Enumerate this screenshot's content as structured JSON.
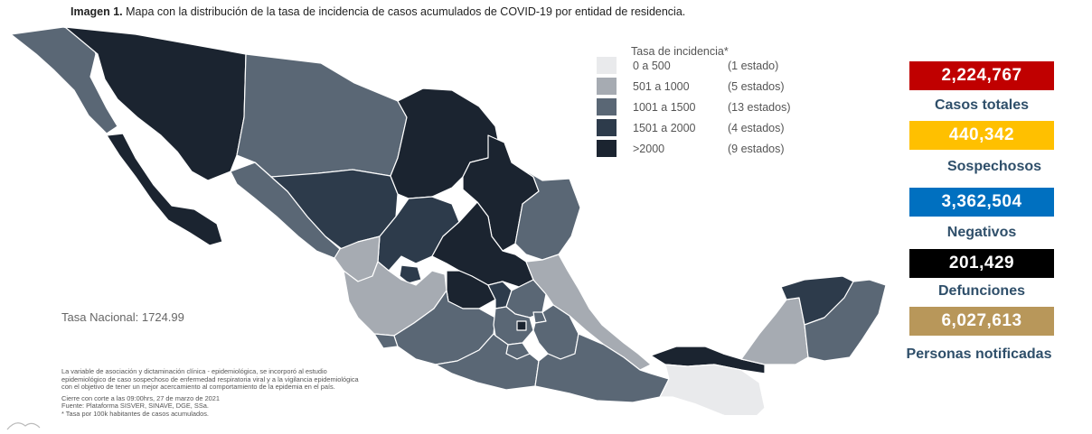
{
  "header": {
    "title_bold": "Imagen 1.",
    "title_rest": " Mapa con la distribución de la tasa de incidencia de casos acumulados de COVID-19 por entidad de residencia."
  },
  "legend": {
    "title": "Tasa de incidencia*",
    "items": [
      {
        "range": "0 a   500",
        "count": "(1 estado)",
        "color": "#e9eaec"
      },
      {
        "range": "501 a   1000",
        "count": "(5 estados)",
        "color": "#a6abb2"
      },
      {
        "range": "1001 a   1500",
        "count": "(13 estados)",
        "color": "#5a6775"
      },
      {
        "range": "1501 a   2000",
        "count": "(4 estados)",
        "color": "#2d3b4b"
      },
      {
        "range": ">2000",
        "count": "(9 estados)",
        "color": "#1b2430"
      }
    ]
  },
  "stats": [
    {
      "value": "2,224,767",
      "label": "Casos totales",
      "color": "#c00000"
    },
    {
      "value": "440,342",
      "label": "Sospechosos",
      "color": "#ffc000"
    },
    {
      "value": "3,362,504",
      "label": "Negativos",
      "color": "#0070c0"
    },
    {
      "value": "201,429",
      "label": "Defunciones",
      "color": "#000000"
    },
    {
      "value": "6,027,613",
      "label": "Personas notificadas",
      "color": "#b8975a"
    }
  ],
  "tasa_nacional": "Tasa Nacional: 1724.99",
  "notes": {
    "line1": "La variable de asociación y dictaminación clínica - epidemiológica, se incorporó al estudio",
    "line2": "epidemiológico de caso sospechoso de enfermedad respiratoria viral y a la vigilancia epidemiológica",
    "line3": "con el objetivo de tener un mejor acercamiento al comportamiento de la epidemia en el país.",
    "line4": "Cierre con corte a las 09:00hrs, 27 de marzo de 2021",
    "line5": "Fuente: Plataforma SISVER, SINAVE, DGE, SSa.",
    "line6": "* Tasa por 100k habitantes de casos acumulados."
  },
  "map_colors": {
    "c0": "#e9eaec",
    "c1": "#a6abb2",
    "c2": "#5a6775",
    "c3": "#2d3b4b",
    "c4": "#1b2430",
    "border": "#ffffff"
  }
}
